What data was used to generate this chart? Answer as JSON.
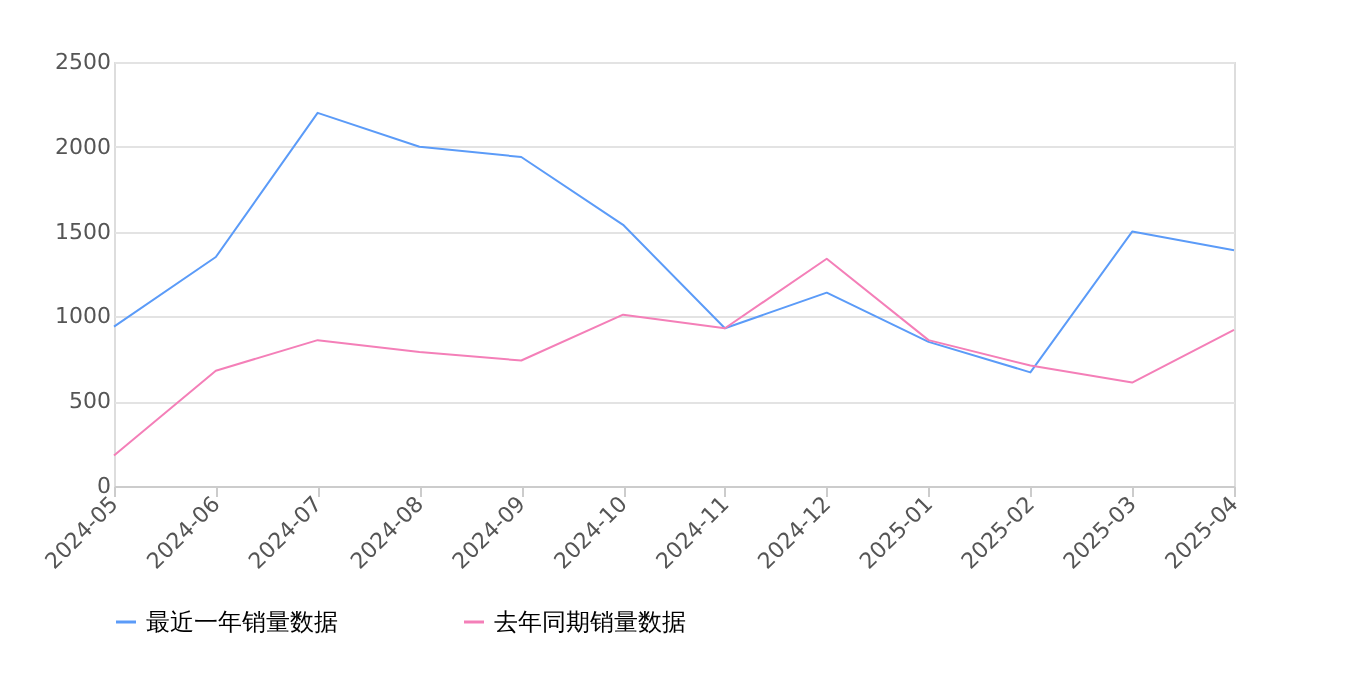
{
  "chart_data": {
    "type": "line",
    "categories": [
      "2024-05",
      "2024-06",
      "2024-07",
      "2024-08",
      "2024-09",
      "2024-10",
      "2024-11",
      "2024-12",
      "2025-01",
      "2025-02",
      "2025-03",
      "2025-04"
    ],
    "series": [
      {
        "name": "最近一年销量数据",
        "color": "#5b9bf8",
        "values": [
          940,
          1350,
          2200,
          2000,
          1940,
          1540,
          930,
          1140,
          850,
          670,
          1500,
          1390
        ]
      },
      {
        "name": "去年同期销量数据",
        "color": "#f47fb8",
        "values": [
          180,
          680,
          860,
          790,
          740,
          1010,
          930,
          1340,
          860,
          710,
          610,
          920
        ]
      }
    ],
    "ylim": [
      0,
      2500
    ],
    "yticks": [
      0,
      500,
      1000,
      1500,
      2000,
      2500
    ],
    "grid": "y",
    "legend": "bottom",
    "marker": "none",
    "line_style": "solid"
  }
}
